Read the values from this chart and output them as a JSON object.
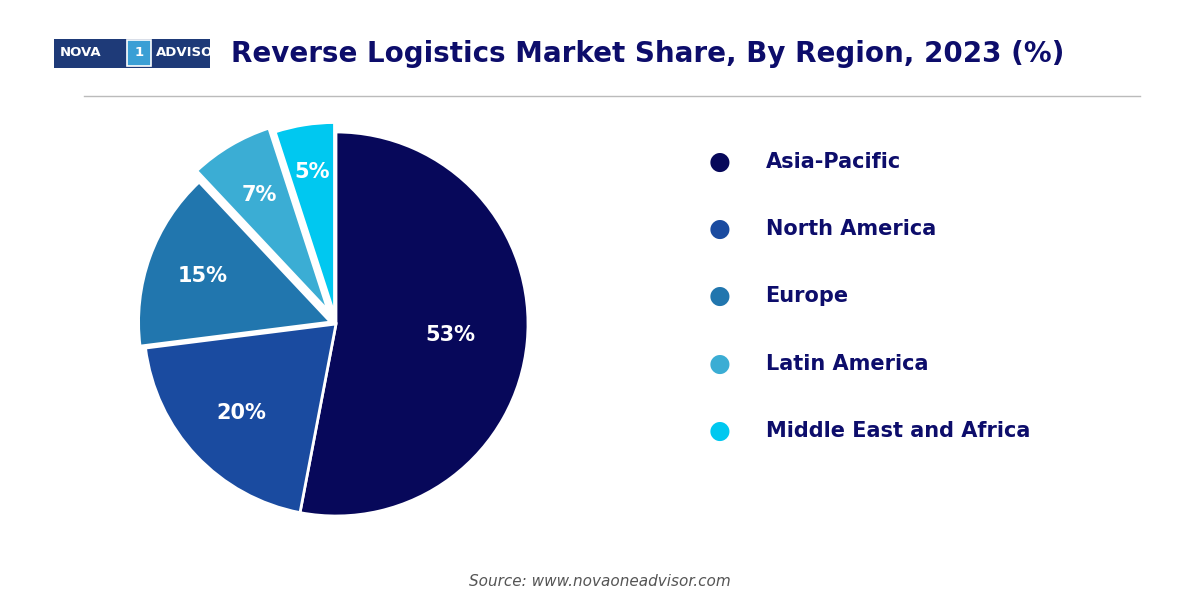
{
  "title": "Reverse Logistics Market Share, By Region, 2023 (%)",
  "title_fontsize": 20,
  "title_color": "#0d0d6b",
  "background_color": "#ffffff",
  "slices": [
    53,
    20,
    15,
    7,
    5
  ],
  "labels": [
    "53%",
    "20%",
    "15%",
    "7%",
    "5%"
  ],
  "regions": [
    "Asia-Pacific",
    "North America",
    "Europe",
    "Latin America",
    "Middle East and Africa"
  ],
  "colors": [
    "#07085a",
    "#1a4ba0",
    "#2176ae",
    "#3badd4",
    "#00c8f0"
  ],
  "explode": [
    0,
    0,
    0.03,
    0.08,
    0.05
  ],
  "startangle": 90,
  "legend_fontsize": 15,
  "label_fontsize": 15,
  "source_text": "Source: www.novaoneadvisor.com",
  "source_fontsize": 11
}
